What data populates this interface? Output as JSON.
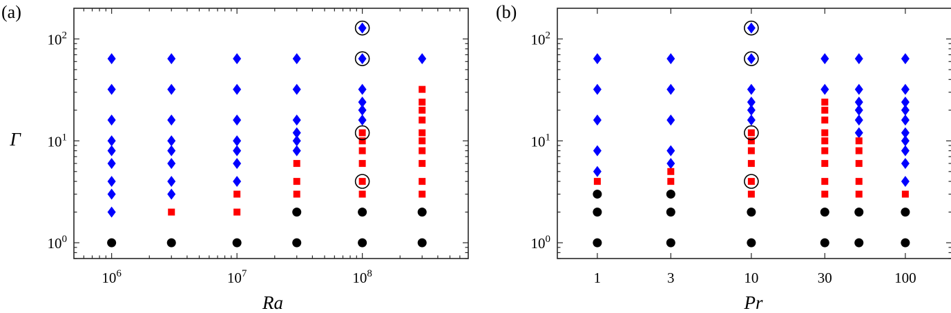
{
  "colors": {
    "diamond": "#0000ff",
    "square": "#ff0000",
    "circle": "#000000",
    "highlight": "#000000"
  },
  "marker_legend": {
    "diamond": "blue diamond marker",
    "square": "red square marker",
    "circle": "black circle marker",
    "highlight": "open black circle around a marker"
  },
  "chart_data": [
    {
      "type": "scatter",
      "panel_label": "(a)",
      "xlabel": "Ra",
      "ylabel": "Γ",
      "xscale": "log",
      "yscale": "log",
      "xlim": [
        500000,
        700000000
      ],
      "ylim": [
        0.7,
        200
      ],
      "xticks": [
        {
          "value": 1000000,
          "base": "10",
          "exp": "6"
        },
        {
          "value": 10000000,
          "base": "10",
          "exp": "7"
        },
        {
          "value": 100000000,
          "base": "10",
          "exp": "8"
        }
      ],
      "yticks": [
        {
          "value": 1,
          "base": "10",
          "exp": "0"
        },
        {
          "value": 10,
          "base": "10",
          "exp": "1"
        },
        {
          "value": 100,
          "base": "10",
          "exp": "2"
        }
      ],
      "series": [
        {
          "marker": "diamond",
          "points": [
            [
              1000000,
              2
            ],
            [
              1000000,
              3
            ],
            [
              1000000,
              4
            ],
            [
              1000000,
              6
            ],
            [
              1000000,
              8
            ],
            [
              1000000,
              10
            ],
            [
              1000000,
              16
            ],
            [
              1000000,
              32
            ],
            [
              1000000,
              64
            ],
            [
              3000000,
              3
            ],
            [
              3000000,
              4
            ],
            [
              3000000,
              6
            ],
            [
              3000000,
              8
            ],
            [
              3000000,
              10
            ],
            [
              3000000,
              16
            ],
            [
              3000000,
              32
            ],
            [
              3000000,
              64
            ],
            [
              10000000,
              4
            ],
            [
              10000000,
              6
            ],
            [
              10000000,
              8
            ],
            [
              10000000,
              10
            ],
            [
              10000000,
              16
            ],
            [
              10000000,
              32
            ],
            [
              10000000,
              64
            ],
            [
              30000000,
              8
            ],
            [
              30000000,
              10
            ],
            [
              30000000,
              12
            ],
            [
              30000000,
              16
            ],
            [
              30000000,
              32
            ],
            [
              30000000,
              64
            ],
            [
              100000000,
              16
            ],
            [
              100000000,
              20
            ],
            [
              100000000,
              24
            ],
            [
              100000000,
              32
            ],
            [
              100000000,
              64
            ],
            [
              100000000,
              128
            ],
            [
              300000000,
              64
            ]
          ]
        },
        {
          "marker": "square",
          "points": [
            [
              3000000,
              2
            ],
            [
              10000000,
              2
            ],
            [
              10000000,
              3
            ],
            [
              30000000,
              3
            ],
            [
              30000000,
              4
            ],
            [
              30000000,
              6
            ],
            [
              100000000,
              3
            ],
            [
              100000000,
              4
            ],
            [
              100000000,
              6
            ],
            [
              100000000,
              8
            ],
            [
              100000000,
              10
            ],
            [
              100000000,
              12
            ],
            [
              300000000,
              3
            ],
            [
              300000000,
              4
            ],
            [
              300000000,
              6
            ],
            [
              300000000,
              8
            ],
            [
              300000000,
              10
            ],
            [
              300000000,
              12
            ],
            [
              300000000,
              16
            ],
            [
              300000000,
              20
            ],
            [
              300000000,
              24
            ],
            [
              300000000,
              32
            ]
          ]
        },
        {
          "marker": "circle",
          "points": [
            [
              1000000,
              1
            ],
            [
              3000000,
              1
            ],
            [
              10000000,
              1
            ],
            [
              30000000,
              1
            ],
            [
              100000000,
              1
            ],
            [
              300000000,
              1
            ],
            [
              30000000,
              2
            ],
            [
              100000000,
              2
            ],
            [
              300000000,
              2
            ]
          ]
        }
      ],
      "highlighted": [
        [
          100000000,
          4
        ],
        [
          100000000,
          12
        ],
        [
          100000000,
          64
        ],
        [
          100000000,
          128
        ]
      ]
    },
    {
      "type": "scatter",
      "panel_label": "(b)",
      "xlabel": "Pr",
      "ylabel": "",
      "xscale": "log",
      "yscale": "log",
      "xlim": [
        0.55,
        200
      ],
      "ylim": [
        0.7,
        200
      ],
      "xticks": [
        {
          "value": 1,
          "label": "1"
        },
        {
          "value": 3,
          "label": "3"
        },
        {
          "value": 10,
          "label": "10"
        },
        {
          "value": 30,
          "label": "30"
        },
        {
          "value": 100,
          "label": "100"
        }
      ],
      "yticks": [
        {
          "value": 1,
          "base": "10",
          "exp": "0"
        },
        {
          "value": 10,
          "base": "10",
          "exp": "1"
        },
        {
          "value": 100,
          "base": "10",
          "exp": "2"
        }
      ],
      "series": [
        {
          "marker": "diamond",
          "points": [
            [
              1,
              5
            ],
            [
              1,
              8
            ],
            [
              1,
              16
            ],
            [
              1,
              32
            ],
            [
              1,
              64
            ],
            [
              3,
              6
            ],
            [
              3,
              8
            ],
            [
              3,
              16
            ],
            [
              3,
              32
            ],
            [
              3,
              64
            ],
            [
              10,
              16
            ],
            [
              10,
              20
            ],
            [
              10,
              24
            ],
            [
              10,
              32
            ],
            [
              10,
              64
            ],
            [
              10,
              128
            ],
            [
              30,
              32
            ],
            [
              30,
              64
            ],
            [
              50,
              12
            ],
            [
              50,
              16
            ],
            [
              50,
              20
            ],
            [
              50,
              24
            ],
            [
              50,
              32
            ],
            [
              50,
              64
            ],
            [
              100,
              4
            ],
            [
              100,
              6
            ],
            [
              100,
              8
            ],
            [
              100,
              10
            ],
            [
              100,
              12
            ],
            [
              100,
              16
            ],
            [
              100,
              20
            ],
            [
              100,
              24
            ],
            [
              100,
              32
            ],
            [
              100,
              64
            ]
          ]
        },
        {
          "marker": "square",
          "points": [
            [
              1,
              4
            ],
            [
              3,
              4
            ],
            [
              3,
              5
            ],
            [
              10,
              3
            ],
            [
              10,
              4
            ],
            [
              10,
              6
            ],
            [
              10,
              8
            ],
            [
              10,
              10
            ],
            [
              10,
              12
            ],
            [
              30,
              3
            ],
            [
              30,
              4
            ],
            [
              30,
              6
            ],
            [
              30,
              8
            ],
            [
              30,
              10
            ],
            [
              30,
              12
            ],
            [
              30,
              16
            ],
            [
              30,
              20
            ],
            [
              30,
              24
            ],
            [
              50,
              3
            ],
            [
              50,
              4
            ],
            [
              50,
              6
            ],
            [
              50,
              8
            ],
            [
              50,
              10
            ],
            [
              100,
              3
            ]
          ]
        },
        {
          "marker": "circle",
          "points": [
            [
              1,
              1
            ],
            [
              1,
              2
            ],
            [
              1,
              3
            ],
            [
              3,
              1
            ],
            [
              3,
              2
            ],
            [
              3,
              3
            ],
            [
              10,
              1
            ],
            [
              10,
              2
            ],
            [
              30,
              1
            ],
            [
              30,
              2
            ],
            [
              50,
              1
            ],
            [
              50,
              2
            ],
            [
              100,
              1
            ],
            [
              100,
              2
            ]
          ]
        }
      ],
      "highlighted": [
        [
          10,
          4
        ],
        [
          10,
          12
        ],
        [
          10,
          64
        ],
        [
          10,
          128
        ]
      ]
    }
  ]
}
